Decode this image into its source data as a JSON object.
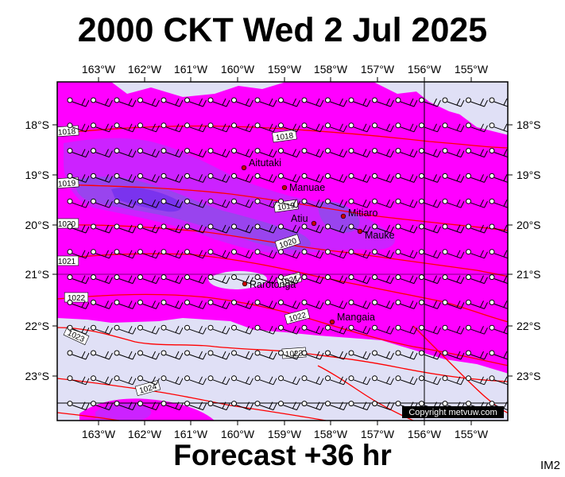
{
  "title": "2000 CKT Wed 2 Jul 2025",
  "subtitle": "Forecast +36 hr",
  "tag": "IM2",
  "copyright": "Copyright metvuw.com",
  "axes": {
    "lon_labels": [
      "163°W",
      "162°W",
      "161°W",
      "160°W",
      "159°W",
      "158°W",
      "157°W",
      "156°W",
      "155°W"
    ],
    "lat_labels": [
      "18°S",
      "19°S",
      "20°S",
      "21°S",
      "22°S",
      "23°S"
    ]
  },
  "places": [
    "Aitutaki",
    "Manuae",
    "Mitiaro",
    "Atiu",
    "Mauke",
    "Rarotonga",
    "Mangaia"
  ],
  "isobars": [
    "1018",
    "1018",
    "1019",
    "1019",
    "1020",
    "1020",
    "1021",
    "1021",
    "1022",
    "1022",
    "1023",
    "1023",
    "1024"
  ],
  "colors": {
    "land_bg": "#e0e0f6",
    "rain_light": "#ff00ff",
    "rain_medium": "#cc22ff",
    "rain_heavy": "#9944ee",
    "rain_heaviest": "#7a33ee",
    "isobar": "#ff0000",
    "town": "#cc0000"
  },
  "legend_ticks": []
}
